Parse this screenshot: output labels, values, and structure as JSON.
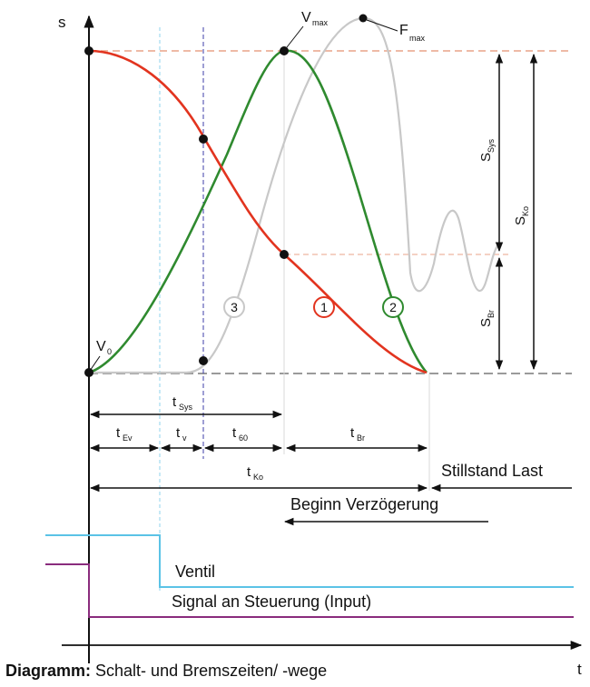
{
  "colors": {
    "red_curve": "#e2341f",
    "green_curve": "#2f8a2f",
    "grey_curve": "#bdbdbd",
    "dashed_ref": "#e9a388",
    "cyan_line": "#5bc3e6",
    "purple_line": "#8a2c7d",
    "blue_dashed": "#3c3ca8",
    "axis": "#111111"
  },
  "axes": {
    "y_label": "s",
    "x_label": "t"
  },
  "points": {
    "v0": {
      "main": "V",
      "sub": "0"
    },
    "vmax": {
      "main": "V",
      "sub": "max"
    },
    "fmax": {
      "main": "F",
      "sub": "max"
    }
  },
  "curve_markers": {
    "m1": "1",
    "m2": "2",
    "m3": "3"
  },
  "distances": {
    "s_sys": {
      "main": "S",
      "sub": "Sys"
    },
    "s_ko": {
      "main": "S",
      "sub": "Ko"
    },
    "s_br": {
      "main": "S",
      "sub": "Br"
    }
  },
  "times": {
    "t_sys": {
      "main": "t",
      "sub": "Sys"
    },
    "t_ev": {
      "main": "t",
      "sub": "Ev"
    },
    "t_v": {
      "main": "t",
      "sub": "v"
    },
    "t_60": {
      "main": "t",
      "sub": "60"
    },
    "t_br": {
      "main": "t",
      "sub": "Br"
    },
    "t_ko": {
      "main": "t",
      "sub": "Ko"
    }
  },
  "annotations": {
    "stillstand": "Stillstand Last",
    "beginn": "Beginn Verzögerung",
    "ventil": "Ventil",
    "signal": "Signal an Steuerung (Input)"
  },
  "caption": {
    "bold": "Diagramm:",
    "rest": " Schalt- und Bremszeiten/ -wege"
  }
}
